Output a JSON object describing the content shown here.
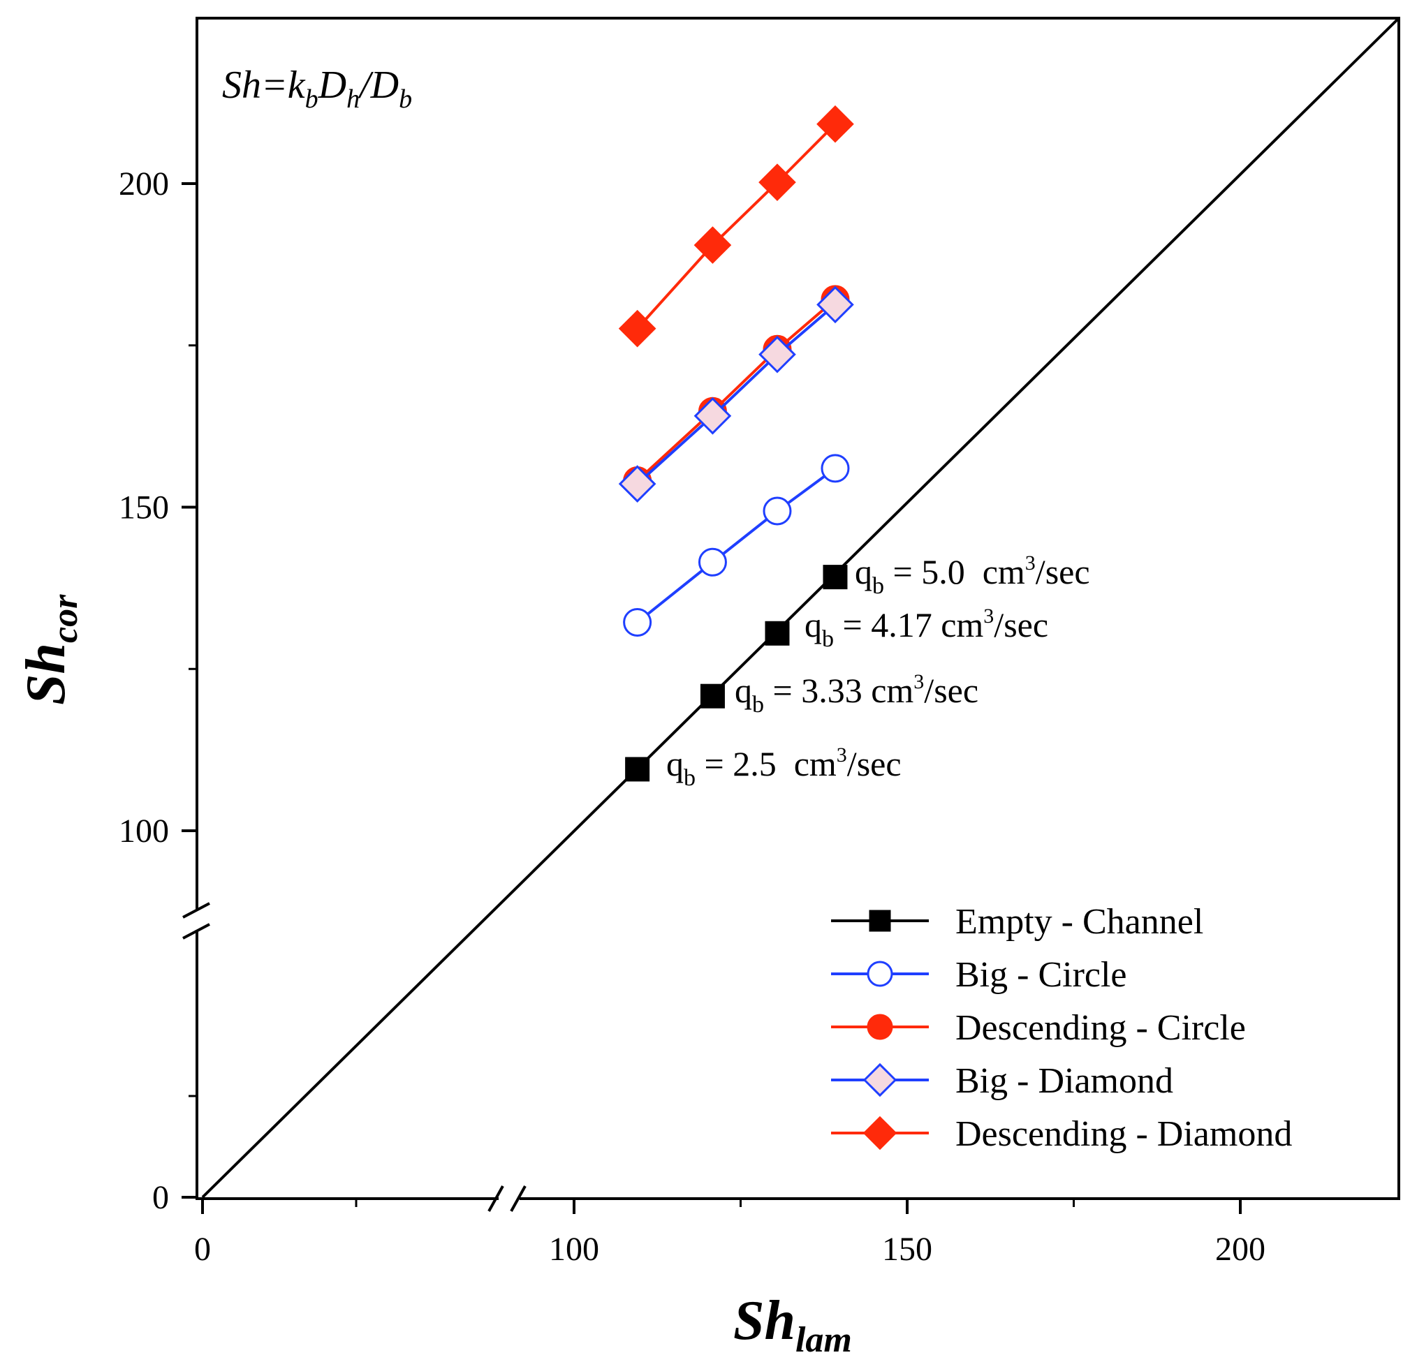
{
  "chart_data": {
    "type": "line",
    "xlabel": {
      "main": "Sh",
      "sub": "lam"
    },
    "ylabel": {
      "main": "Sh",
      "sub": "cor"
    },
    "formula": {
      "lhs": "Sh",
      "eq": "=",
      "k": "k",
      "k_sub": "b",
      "d1": "D",
      "d1_sub": "h",
      "slash": "/",
      "d2": "D",
      "d2_sub": "b"
    },
    "x_ticks": [
      0,
      100,
      150,
      200
    ],
    "y_ticks": [
      0,
      100,
      150,
      200
    ],
    "x_break": "between 0 and 100",
    "y_break": "between 0 and 100",
    "xlim": [
      0,
      225
    ],
    "ylim": [
      0,
      220
    ],
    "diagonal": {
      "from": [
        0,
        0
      ],
      "to": [
        225,
        225
      ]
    },
    "series": [
      {
        "name": "Empty - Channel",
        "marker": "square",
        "filled": true,
        "color": "#000000",
        "x": [
          109.5,
          120.8,
          130.5,
          139.2
        ],
        "y": [
          109.5,
          120.8,
          130.5,
          139.2
        ]
      },
      {
        "name": "Big - Circle",
        "marker": "circle",
        "filled": false,
        "color": "#1f3fff",
        "x": [
          109.5,
          120.8,
          130.5,
          139.2
        ],
        "y": [
          132.2,
          141.5,
          149.4,
          156.0
        ]
      },
      {
        "name": "Descending - Circle",
        "marker": "circle",
        "filled": true,
        "color": "#ff2a0a",
        "x": [
          109.5,
          120.8,
          130.5,
          139.2
        ],
        "y": [
          154.1,
          164.8,
          174.4,
          182.1
        ]
      },
      {
        "name": "Big - Diamond",
        "marker": "diamond",
        "filled": false,
        "color": "#1f3fff",
        "x": [
          109.5,
          120.8,
          130.5,
          139.2
        ],
        "y": [
          153.6,
          164.1,
          173.6,
          181.3
        ]
      },
      {
        "name": "Descending - Diamond",
        "marker": "diamond",
        "filled": true,
        "color": "#ff2a0a",
        "x": [
          109.5,
          120.8,
          130.5,
          139.2
        ],
        "y": [
          177.6,
          190.5,
          200.2,
          209.2
        ]
      }
    ],
    "annotations": [
      {
        "prefix": "q",
        "sub": "b",
        "value": " = 5.0  cm",
        "sup": "3",
        "unit": "/sec",
        "at": [
          139.2,
          139.2
        ]
      },
      {
        "prefix": "q",
        "sub": "b",
        "value": " = 4.17 cm",
        "sup": "3",
        "unit": "/sec",
        "at": [
          130.5,
          130.5
        ]
      },
      {
        "prefix": "q",
        "sub": "b",
        "value": " = 3.33 cm",
        "sup": "3",
        "unit": "/sec",
        "at": [
          120.8,
          120.8
        ]
      },
      {
        "prefix": "q",
        "sub": "b",
        "value": " = 2.5  cm",
        "sup": "3",
        "unit": "/sec",
        "at": [
          109.5,
          109.5
        ]
      }
    ],
    "legend_position": "bottom-right"
  }
}
